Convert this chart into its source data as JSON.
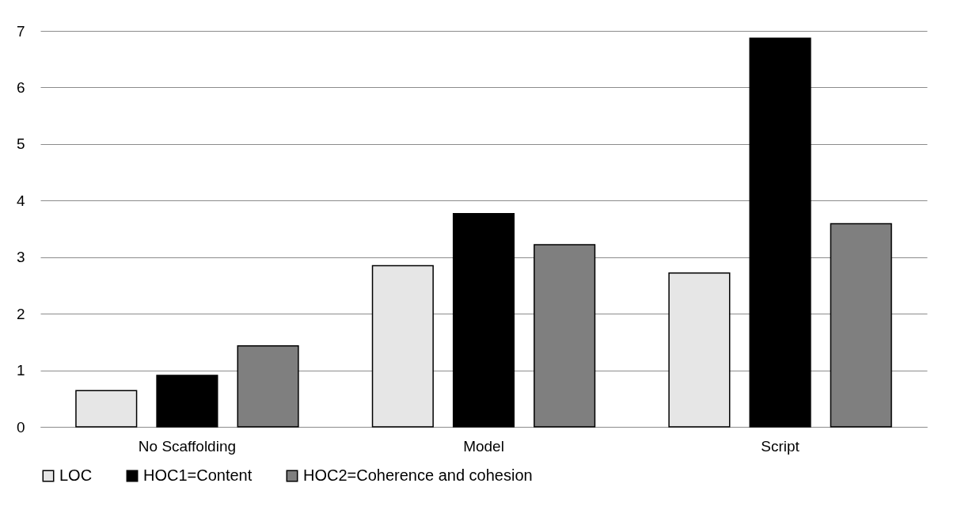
{
  "chart_data": {
    "type": "bar",
    "categories": [
      "No Scaffolding",
      "Model",
      "Script"
    ],
    "series": [
      {
        "name": "LOC",
        "color": "#e6e6e6",
        "values": [
          0.64,
          2.85,
          2.72
        ]
      },
      {
        "name": "HOC1=Content",
        "color": "#000000",
        "values": [
          0.91,
          3.77,
          6.87
        ]
      },
      {
        "name": "HOC2=Coherence and cohesion",
        "color": "#7f7f7f",
        "values": [
          1.43,
          3.22,
          3.59
        ]
      }
    ],
    "ylim": [
      0,
      7
    ],
    "yticks": [
      0,
      1,
      2,
      3,
      4,
      5,
      6,
      7
    ],
    "grid": "y",
    "legend": "bottom"
  }
}
